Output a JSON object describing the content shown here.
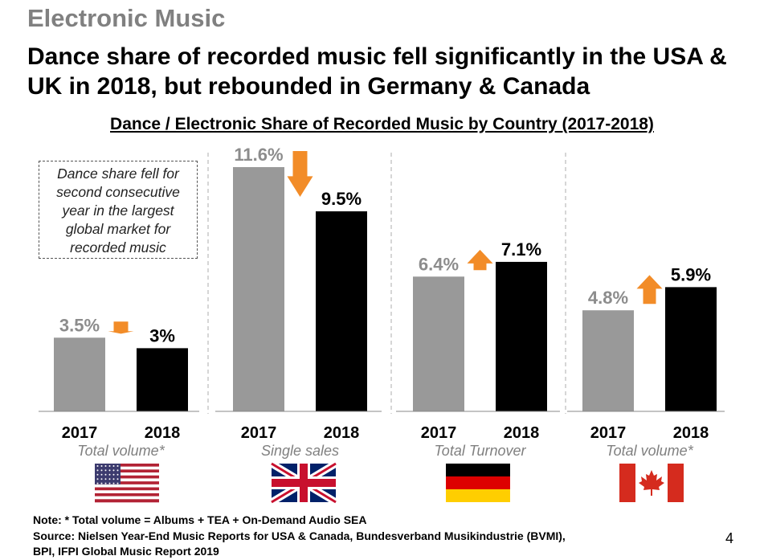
{
  "section_label": "Electronic Music",
  "headline": "Dance share of recorded music fell significantly in the USA & UK in 2018, but rebounded in Germany & Canada",
  "colors": {
    "bar_2017": "#999999",
    "bar_2018": "#000000",
    "arrow": "#F28C28",
    "label_2017": "#8c8c8c",
    "divider": "#c8c8c8"
  },
  "callout": "Dance share fell for second consecutive year in the largest global market for recorded music",
  "chart_data": {
    "type": "bar",
    "title": "Dance / Electronic Share of Recorded Music by Country (2017-2018)",
    "categories": [
      "2017",
      "2018"
    ],
    "ylim": [
      0,
      11.6
    ],
    "grid": false,
    "groups": [
      {
        "country": "USA",
        "metric": "Total volume*",
        "flag": "usa-flag-icon",
        "values": [
          3.5,
          3.0
        ],
        "labels": [
          "3.5%",
          "3%"
        ],
        "trend": "down"
      },
      {
        "country": "UK",
        "metric": "Single sales",
        "flag": "uk-flag-icon",
        "values": [
          11.6,
          9.5
        ],
        "labels": [
          "11.6%",
          "9.5%"
        ],
        "trend": "down"
      },
      {
        "country": "Germany",
        "metric": "Total Turnover",
        "flag": "germany-flag-icon",
        "values": [
          6.4,
          7.1
        ],
        "labels": [
          "6.4%",
          "7.1%"
        ],
        "trend": "up"
      },
      {
        "country": "Canada",
        "metric": "Total volume*",
        "flag": "canada-flag-icon",
        "values": [
          4.8,
          5.9
        ],
        "labels": [
          "4.8%",
          "5.9%"
        ],
        "trend": "up"
      }
    ]
  },
  "footnote": {
    "note": "Note: * Total volume = Albums + TEA + On-Demand Audio SEA",
    "source_line1": "Source: Nielsen Year-End Music Reports for USA & Canada, Bundesverband Musikindustrie (BVMI),",
    "source_line2": "BPI, IFPI Global Music Report 2019"
  },
  "page_number": "4"
}
